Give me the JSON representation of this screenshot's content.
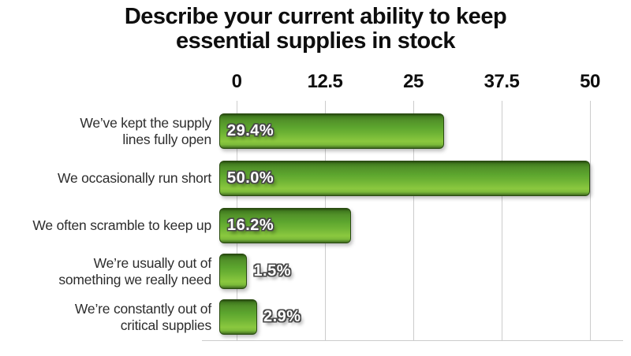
{
  "chart_data": {
    "type": "bar",
    "orientation": "horizontal",
    "title": "Describe your current ability to keep essential supplies in stock",
    "title_lines": [
      "Describe your current ability to keep",
      "essential supplies in stock"
    ],
    "categories": [
      "We’ve kept the supply lines fully open",
      "We occasionally run short",
      "We often scramble to keep up",
      "We’re usually out of something we really need",
      "We’re constantly out of critical supplies"
    ],
    "category_lines": [
      [
        "We’ve kept the supply",
        "lines fully open"
      ],
      [
        "We occasionally run short"
      ],
      [
        "We often scramble to keep up"
      ],
      [
        "We’re usually out of",
        "something we really need"
      ],
      [
        "We’re constantly out of",
        "critical supplies"
      ]
    ],
    "values": [
      29.4,
      50.0,
      16.2,
      1.5,
      2.9
    ],
    "value_labels": [
      "29.4%",
      "50.0%",
      "16.2%",
      "1.5%",
      "2.9%"
    ],
    "label_placement": [
      "inside",
      "inside",
      "inside",
      "outside",
      "outside"
    ],
    "xlim": [
      0,
      50
    ],
    "x_ticks": [
      0,
      12.5,
      25,
      37.5,
      50
    ],
    "x_tick_labels": [
      "0",
      "12.5",
      "25",
      "37.5",
      "50"
    ],
    "axis_position": "top",
    "grid": true,
    "legend": false,
    "colors": {
      "bar_dark_edge": "#27490f",
      "bar_mid_green": "#5ca52e",
      "bar_light_green": "#8bc83f",
      "bar_border": "#2a4c11",
      "grid": "#cccccc",
      "title_text": "#0e0e0e",
      "category_text": "#2d2d2d",
      "value_text": "#ffffff",
      "value_outline": "#474747"
    }
  }
}
